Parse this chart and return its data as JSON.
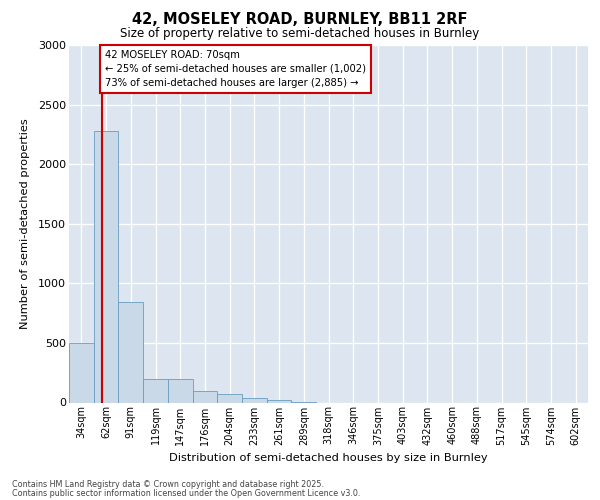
{
  "title1": "42, MOSELEY ROAD, BURNLEY, BB11 2RF",
  "title2": "Size of property relative to semi-detached houses in Burnley",
  "xlabel": "Distribution of semi-detached houses by size in Burnley",
  "ylabel": "Number of semi-detached properties",
  "categories": [
    "34sqm",
    "62sqm",
    "91sqm",
    "119sqm",
    "147sqm",
    "176sqm",
    "204sqm",
    "233sqm",
    "261sqm",
    "289sqm",
    "318sqm",
    "346sqm",
    "375sqm",
    "403sqm",
    "432sqm",
    "460sqm",
    "488sqm",
    "517sqm",
    "545sqm",
    "574sqm",
    "602sqm"
  ],
  "values": [
    500,
    2280,
    840,
    200,
    200,
    100,
    70,
    40,
    25,
    5,
    0,
    0,
    0,
    0,
    0,
    0,
    0,
    0,
    0,
    0,
    0
  ],
  "bar_color": "#c9d9e8",
  "bar_edge_color": "#6a9dc0",
  "annotation_title": "42 MOSELEY ROAD: 70sqm",
  "annotation_line1": "← 25% of semi-detached houses are smaller (1,002)",
  "annotation_line2": "73% of semi-detached houses are larger (2,885) →",
  "annotation_box_color": "#ffffff",
  "annotation_box_edge": "#cc0000",
  "ylim": [
    0,
    3000
  ],
  "yticks": [
    0,
    500,
    1000,
    1500,
    2000,
    2500,
    3000
  ],
  "footer1": "Contains HM Land Registry data © Crown copyright and database right 2025.",
  "footer2": "Contains public sector information licensed under the Open Government Licence v3.0.",
  "background_color": "#ffffff",
  "plot_background": "#dde6f0"
}
